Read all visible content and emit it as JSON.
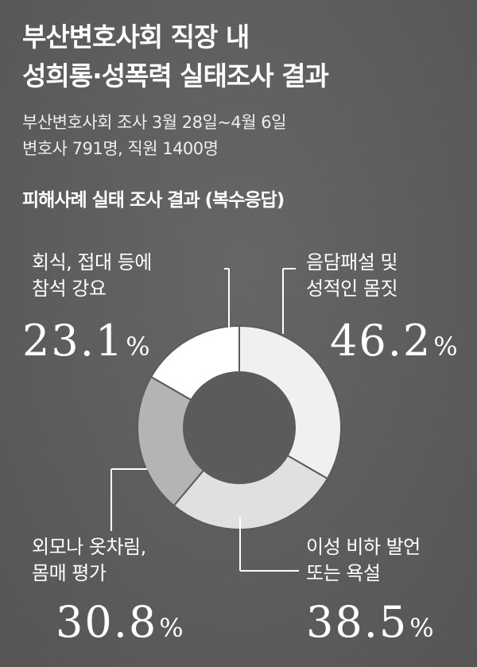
{
  "title": {
    "line1": "부산변호사회 직장 내",
    "line2": "성희롱·성폭력 실태조사 결과"
  },
  "subtitle": {
    "line1": "부산변호사회 조사 3월 28일~4월 6일",
    "line2": "변호사 791명, 직원 1400명"
  },
  "section_title": "피해사례 실태 조사 결과 (복수응답)",
  "chart_data": {
    "type": "pie",
    "title": "피해사례 실태 조사 결과 (복수응답)",
    "unit": "%",
    "slices": [
      {
        "label": [
          "음담패설 및",
          "성적인 몸짓"
        ],
        "value": 46.2,
        "value_text": "46.2",
        "color": "#f0f0f0"
      },
      {
        "label": [
          "이성 비하 발언",
          "또는 욕설"
        ],
        "value": 38.5,
        "value_text": "38.5",
        "color": "#e0e0e0"
      },
      {
        "label": [
          "외모나 옷차림,",
          "몸매 평가"
        ],
        "value": 30.8,
        "value_text": "30.8",
        "color": "#b4b4b4"
      },
      {
        "label": [
          "회식, 접대 등에",
          "참석 강요"
        ],
        "value": 23.1,
        "value_text": "23.1",
        "color": "#ffffff"
      }
    ]
  }
}
